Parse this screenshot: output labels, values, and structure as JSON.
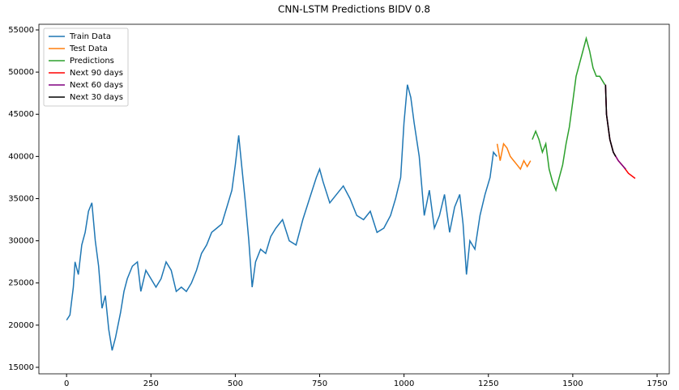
{
  "chart_data": {
    "type": "line",
    "title": "CNN-LSTM Predictions BIDV 0.8",
    "xlim": [
      -82,
      1786
    ],
    "ylim": [
      14230,
      55670
    ],
    "xticks": [
      0,
      250,
      500,
      750,
      1000,
      1250,
      1500,
      1750
    ],
    "yticks": [
      15000,
      20000,
      25000,
      30000,
      35000,
      40000,
      45000,
      50000,
      55000
    ],
    "legend": "upper left",
    "series": [
      {
        "name": "Train Data",
        "color": "#1f77b4",
        "x": [
          0,
          10,
          20,
          25,
          35,
          45,
          55,
          65,
          75,
          85,
          95,
          105,
          115,
          125,
          135,
          145,
          160,
          170,
          180,
          195,
          210,
          220,
          235,
          250,
          265,
          280,
          295,
          310,
          325,
          340,
          355,
          370,
          385,
          400,
          415,
          430,
          445,
          460,
          475,
          490,
          500,
          510,
          520,
          530,
          540,
          550,
          560,
          575,
          590,
          605,
          620,
          640,
          660,
          680,
          700,
          720,
          740,
          750,
          760,
          780,
          800,
          820,
          840,
          860,
          880,
          900,
          920,
          940,
          960,
          975,
          990,
          1000,
          1010,
          1020,
          1030,
          1045,
          1060,
          1075,
          1090,
          1105,
          1120,
          1135,
          1150,
          1165,
          1175,
          1185,
          1195,
          1210,
          1225,
          1240,
          1255,
          1265,
          1275
        ],
        "values": [
          20600,
          21200,
          24500,
          27500,
          26000,
          29500,
          31000,
          33500,
          34500,
          30000,
          27000,
          22000,
          23500,
          19500,
          17000,
          18500,
          21500,
          24000,
          25500,
          27000,
          27500,
          24000,
          26500,
          25500,
          24500,
          25500,
          27500,
          26500,
          24000,
          24500,
          24000,
          25000,
          26500,
          28500,
          29500,
          31000,
          31500,
          32000,
          34000,
          36000,
          39000,
          42500,
          38500,
          34500,
          30000,
          24500,
          27500,
          29000,
          28500,
          30500,
          31500,
          32500,
          30000,
          29500,
          32500,
          35000,
          37500,
          38500,
          37000,
          34500,
          35500,
          36500,
          35000,
          33000,
          32500,
          33500,
          31000,
          31500,
          33000,
          35000,
          37500,
          44000,
          48500,
          47000,
          44000,
          40000,
          33000,
          36000,
          31500,
          33000,
          35500,
          31000,
          34000,
          35500,
          32000,
          26000,
          30000,
          29000,
          33000,
          35500,
          37500,
          40500,
          40000
        ]
      },
      {
        "name": "Test Data",
        "color": "#ff7f0e",
        "x": [
          1276,
          1285,
          1295,
          1305,
          1315,
          1325,
          1335,
          1345,
          1355,
          1365,
          1375
        ],
        "values": [
          41500,
          39500,
          41500,
          41000,
          40000,
          39500,
          39000,
          38500,
          39500,
          38800,
          39500
        ]
      },
      {
        "name": "Predictions",
        "color": "#2ca02c",
        "x": [
          1380,
          1390,
          1400,
          1410,
          1420,
          1430,
          1440,
          1450,
          1460,
          1470,
          1480,
          1490,
          1500,
          1510,
          1520,
          1530,
          1540,
          1550,
          1560,
          1570,
          1580,
          1595
        ],
        "values": [
          42000,
          43000,
          42000,
          40500,
          41500,
          38500,
          37000,
          36000,
          37500,
          39000,
          41500,
          43500,
          46500,
          49500,
          51000,
          52500,
          54000,
          52500,
          50500,
          49500,
          49500,
          48500
        ]
      },
      {
        "name": "Next 90 days",
        "color": "#ff0000",
        "x": [
          1597,
          1600,
          1610,
          1620,
          1635,
          1650,
          1665,
          1685
        ],
        "values": [
          48500,
          45000,
          42000,
          40500,
          39500,
          38800,
          38000,
          37400
        ]
      },
      {
        "name": "Next 60 days",
        "color": "#800080",
        "x": [
          1597,
          1600,
          1610,
          1620,
          1635,
          1650,
          1657
        ],
        "values": [
          48500,
          45000,
          42000,
          40500,
          39500,
          38800,
          38500
        ]
      },
      {
        "name": "Next 30 days",
        "color": "#000000",
        "x": [
          1597,
          1600,
          1610,
          1620,
          1627
        ],
        "values": [
          48500,
          45000,
          42000,
          40500,
          40000
        ]
      }
    ]
  }
}
